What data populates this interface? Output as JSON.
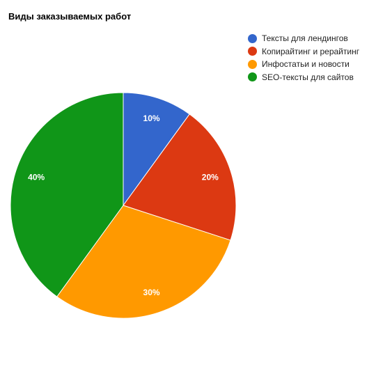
{
  "chart_data": {
    "type": "pie",
    "title": "Виды заказываемых работ",
    "legend_position": "right",
    "categories": [
      "Тексты для лендингов",
      "Копирайтинг и рерайтинг",
      "Инфостатьи и новости",
      "SEO-тексты для сайтов"
    ],
    "values": [
      10,
      20,
      30,
      40
    ],
    "labels": [
      "10%",
      "20%",
      "30%",
      "40%"
    ],
    "colors": [
      "#3366cc",
      "#dc3912",
      "#ff9900",
      "#109618"
    ]
  }
}
